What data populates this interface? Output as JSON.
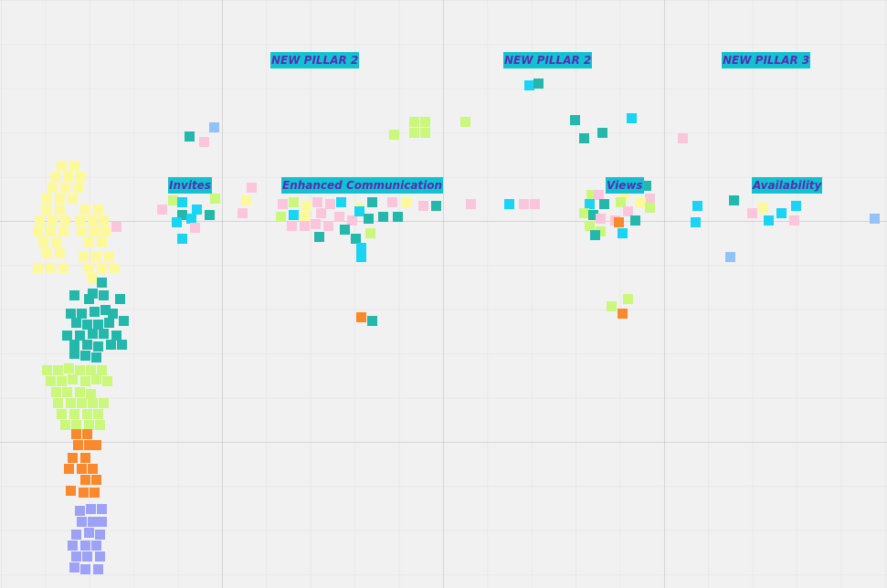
{
  "board": {
    "background": "#f1f1f1"
  },
  "labels": {
    "new_pillar_2_a": "NEW PILLAR 2",
    "new_pillar_2_b": "NEW PILLAR 2",
    "new_pillar_3": "NEW PILLAR 3",
    "invites": "Invites",
    "enhanced_communication": "Enhanced Communication",
    "views": "Views",
    "availability": "Availability"
  },
  "colors": {
    "label_background": "#12c3cf",
    "label_text": "#5a2bb8",
    "yellow": "#fdf99a",
    "teal": "#24b8ad",
    "lime": "#c9f87a",
    "orange": "#f9892c",
    "lavender": "#9ea2f7",
    "pink": "#fbc6dc",
    "cyan": "#19d4f2",
    "light_blue": "#92c3f7"
  },
  "icons": {
    "sticky_note": "sticky-note-icon"
  }
}
